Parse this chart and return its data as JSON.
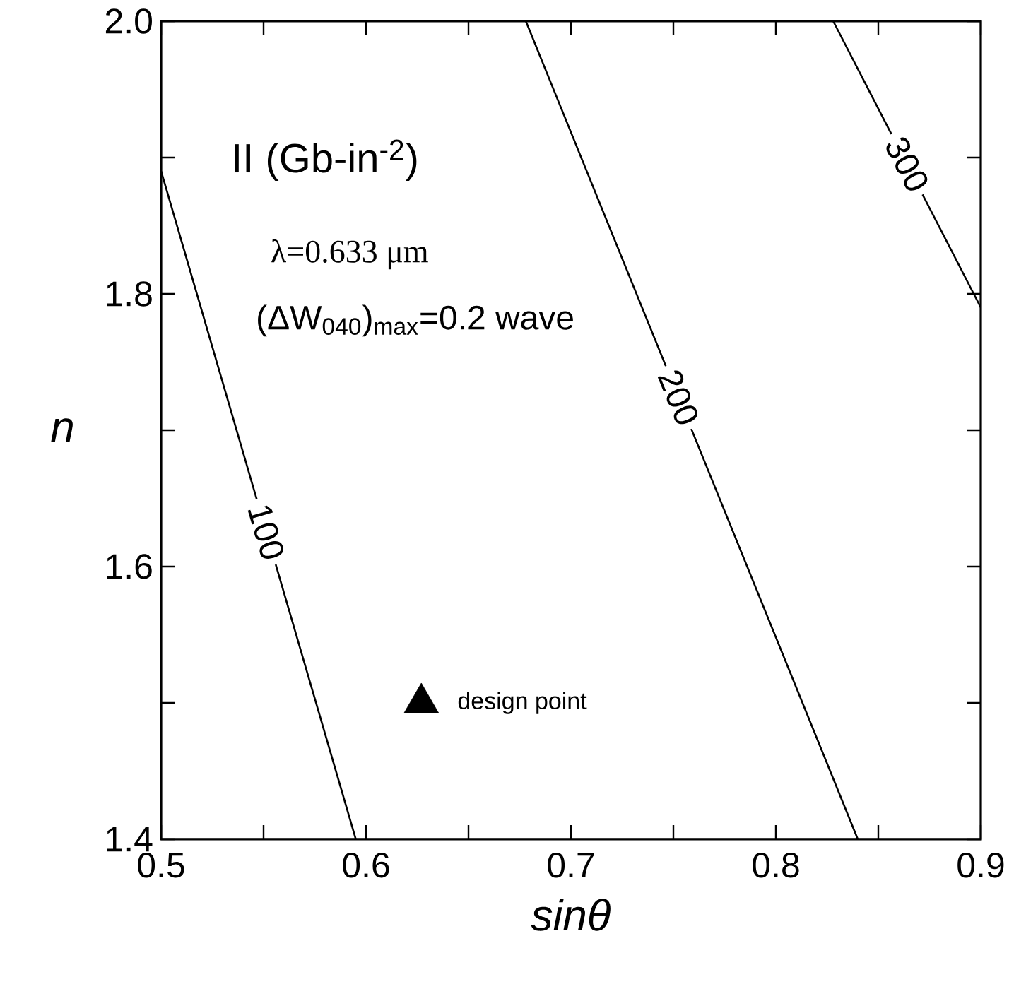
{
  "chart_data": {
    "type": "line",
    "title": "II (Gb-in$^{-2}$)",
    "xlabel": "*sinθ*",
    "ylabel": "*n*",
    "annotations": [
      "λ=0.633 μm",
      "(ΔW$_{040}$)$_{max}$=0.2 wave"
    ],
    "xlim": [
      0.5,
      0.9
    ],
    "ylim": [
      1.4,
      2.0
    ],
    "xticks": [
      0.5,
      {
        "value": 0.55,
        "label": null
      },
      0.6,
      {
        "value": 0.65,
        "label": null
      },
      0.7,
      {
        "value": 0.75,
        "label": null
      },
      0.8,
      {
        "value": 0.85,
        "label": null
      },
      0.9
    ],
    "yticks": [
      1.4,
      {
        "value": 1.5,
        "label": null
      },
      1.6,
      {
        "value": 1.7,
        "label": null
      },
      1.8,
      {
        "value": 1.9,
        "label": null
      },
      {
        "value": 2.0,
        "label": "2.0"
      }
    ],
    "line_style": "solid",
    "series": [
      {
        "name": "100",
        "color": "#000000",
        "x": [
          0.5,
          0.595
        ],
        "values": [
          1.89,
          1.4
        ]
      },
      {
        "name": "200",
        "color": "#000000",
        "x": [
          0.678,
          0.84
        ],
        "values": [
          2.0,
          1.4
        ]
      },
      {
        "name": "300",
        "color": "#000000",
        "x": [
          0.828,
          0.9
        ],
        "values": [
          2.0,
          1.79
        ]
      },
      {
        "type": "scatter",
        "name": "design point",
        "color": "#000000",
        "marker": "triangle",
        "x": [
          0.627
        ],
        "values": [
          1.5
        ]
      }
    ]
  }
}
